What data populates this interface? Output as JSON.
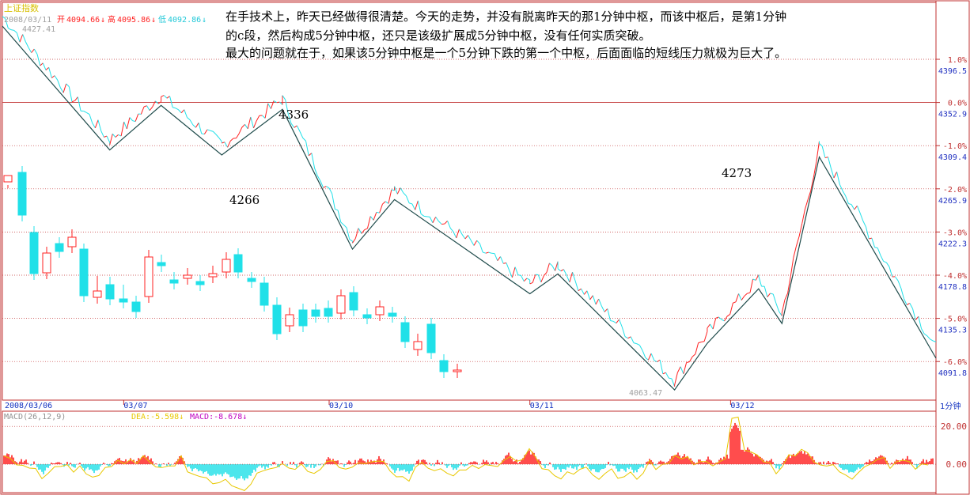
{
  "header": {
    "index_name": "上证指数",
    "date": "2008/03/11",
    "open_label": "开",
    "open": "4094.66",
    "high_label": "高",
    "high": "4095.86",
    "low_label": "低",
    "low": "4092.86",
    "arrow": "↓"
  },
  "annotation": {
    "line1": "在手技术上，昨天已经做得很清楚。今天的走势，并没有脱离昨天的那1分钟中枢，而该中枢后，是第1分钟",
    "line2": "的c段，然后构成5分钟中枢，还只是该级扩展成5分钟中枢，没有任何实质突破。",
    "line3": "最大的问题就在于，如果该5分钟中枢是一个5分钟下跌的第一个中枢，后面面临的短线压力就极为巨大了。"
  },
  "macd_header": {
    "params": "MACD(26,12,9)",
    "dea": "DEA:-5.598↓",
    "macd": "MACD:-8.678↓",
    "dea_color": "#e8c800",
    "macd_color": "#c000c0"
  },
  "colors": {
    "up": "#ff2020",
    "down": "#20e0e8",
    "zigzag": "#1e4a4a",
    "grid": "#c03030",
    "axis": "#c03030",
    "dea": "#e8c800",
    "title": "#d8c000"
  },
  "period_label": "1分钟",
  "chart_data": [
    {
      "type": "line",
      "title": "上证指数",
      "x_ticks": [
        "2008/03/06",
        "03/07",
        "03/10",
        "03/11",
        "03/12"
      ],
      "y_ticks_pct": [
        "1.0%",
        "0.0%",
        "-1.0%",
        "-2.0%",
        "-3.0%",
        "-4.0%",
        "-5.0%",
        "-6.0%"
      ],
      "y_ticks_price": [
        "4396.5",
        "4352.9",
        "4309.4",
        "4265.9",
        "4222.3",
        "4178.8",
        "4135.3",
        "4091.8"
      ],
      "ylim": [
        4063.47,
        4440
      ],
      "labels": [
        {
          "text": "4427.41",
          "value": 4427.41
        },
        {
          "text": "4336",
          "value": 4336
        },
        {
          "text": "4266",
          "value": 4266
        },
        {
          "text": "4273",
          "value": 4273
        },
        {
          "text": "4063.47",
          "value": 4063.47
        }
      ],
      "series": [
        {
          "type": "zigzag",
          "points": [
            [
              0.0,
              4430
            ],
            [
              0.115,
              4305
            ],
            [
              0.17,
              4350
            ],
            [
              0.235,
              4300
            ],
            [
              0.3,
              4346
            ],
            [
              0.375,
              4205
            ],
            [
              0.42,
              4255
            ],
            [
              0.565,
              4160
            ],
            [
              0.595,
              4180
            ],
            [
              0.72,
              4063
            ],
            [
              0.755,
              4110
            ],
            [
              0.81,
              4165
            ],
            [
              0.835,
              4130
            ],
            [
              0.875,
              4298
            ],
            [
              1.0,
              4095
            ]
          ]
        }
      ]
    },
    {
      "type": "bar",
      "title": "MACD(26,12,9)",
      "y_ticks": [
        "20.00",
        "0.00"
      ],
      "ylim": [
        -15,
        28
      ],
      "series": [
        {
          "name": "DEA",
          "values": [
            -5.598
          ]
        },
        {
          "name": "MACD",
          "values": [
            -8.678
          ]
        }
      ]
    }
  ]
}
